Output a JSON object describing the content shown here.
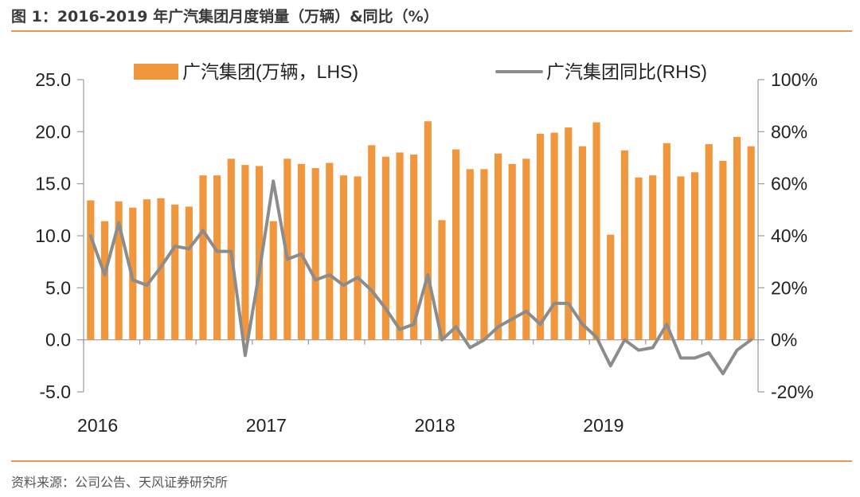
{
  "header": {
    "title": "图 1：2016-2019 年广汽集团月度销量（万辆）&同比（%）"
  },
  "footer": {
    "source": "资料来源：公司公告、天风证券研究所"
  },
  "colors": {
    "bar": "#f0963c",
    "line": "#8c8c8c",
    "rule": "#e8965a"
  },
  "chart_data": {
    "type": "bar",
    "title": "",
    "xlabel": "",
    "ylabel": "",
    "x_tick_labels": [
      "2016",
      "2017",
      "2018",
      "2019"
    ],
    "y_left": {
      "lim": [
        -5,
        25
      ],
      "ticks": [
        "25.0",
        "20.0",
        "15.0",
        "10.0",
        "5.0",
        "0.0",
        "-5.0"
      ]
    },
    "y_right": {
      "lim": [
        -20,
        100
      ],
      "ticks": [
        "100%",
        "80%",
        "60%",
        "40%",
        "20%",
        "0%",
        "-20%"
      ]
    },
    "legend_position": "top",
    "grid": false,
    "categories": [
      "2016-01",
      "2016-02",
      "2016-03",
      "2016-04",
      "2016-05",
      "2016-06",
      "2016-07",
      "2016-08",
      "2016-09",
      "2016-10",
      "2016-11",
      "2016-12",
      "2017-01",
      "2017-02",
      "2017-03",
      "2017-04",
      "2017-05",
      "2017-06",
      "2017-07",
      "2017-08",
      "2017-09",
      "2017-10",
      "2017-11",
      "2017-12",
      "2018-01",
      "2018-02",
      "2018-03",
      "2018-04",
      "2018-05",
      "2018-06",
      "2018-07",
      "2018-08",
      "2018-09",
      "2018-10",
      "2018-11",
      "2018-12",
      "2019-01",
      "2019-02",
      "2019-03",
      "2019-04",
      "2019-05",
      "2019-06",
      "2019-07",
      "2019-08",
      "2019-09",
      "2019-10",
      "2019-11",
      "2019-12"
    ],
    "series": [
      {
        "name": "广汽集团(万辆，LHS)",
        "type": "bar",
        "axis": "left",
        "values": [
          13.4,
          11.4,
          13.3,
          12.7,
          13.5,
          13.6,
          13.0,
          12.8,
          15.8,
          15.8,
          17.4,
          16.8,
          16.7,
          11.4,
          17.4,
          16.9,
          16.5,
          17.0,
          15.8,
          15.7,
          18.7,
          17.6,
          18.0,
          17.8,
          21.0,
          11.5,
          18.3,
          16.4,
          16.4,
          17.9,
          16.9,
          17.4,
          19.8,
          19.9,
          20.4,
          18.6,
          20.9,
          10.1,
          18.2,
          15.6,
          15.8,
          18.9,
          15.7,
          16.1,
          18.8,
          17.2,
          19.5,
          18.6
        ]
      },
      {
        "name": "广汽集团同比(RHS)",
        "type": "line",
        "axis": "right",
        "values": [
          40,
          25,
          45,
          23,
          21,
          28,
          36,
          35,
          42,
          34,
          34,
          -6,
          26,
          61,
          31,
          33,
          23,
          25,
          21,
          24,
          19,
          12,
          4,
          6,
          25,
          0,
          5,
          -3,
          0,
          5,
          8,
          11,
          6,
          14,
          14,
          6,
          1,
          -10,
          0,
          -4,
          -3,
          6,
          -7,
          -7,
          -5,
          -13,
          -4,
          0
        ]
      }
    ]
  }
}
